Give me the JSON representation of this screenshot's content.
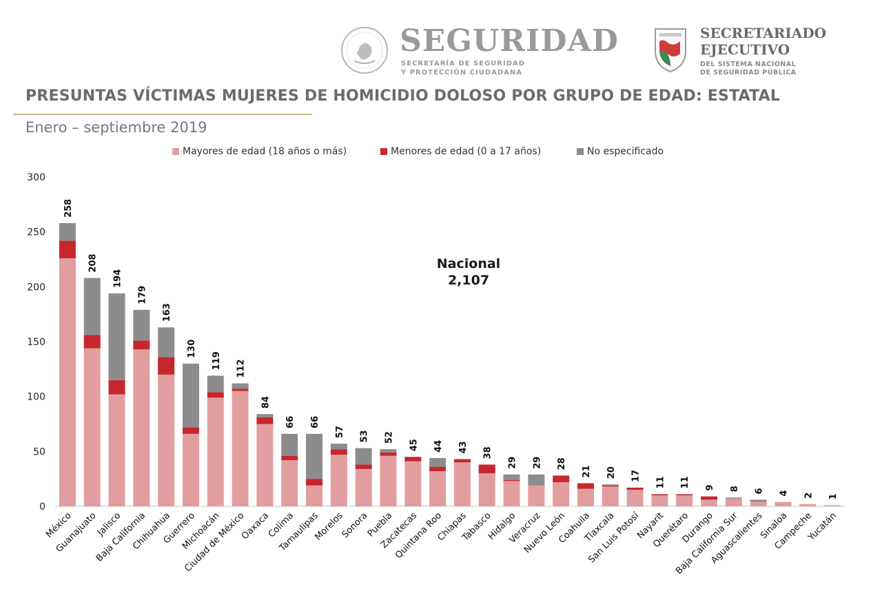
{
  "header": {
    "seguridad_word": "SEGURIDAD",
    "seguridad_sub_line1": "SECRETARÍA DE SEGURIDAD",
    "seguridad_sub_line2": "Y PROTECCIÓN CIUDADANA",
    "se_word_line1": "SECRETARIADO",
    "se_word_line2": "EJECUTIVO",
    "se_sub_line1": "DEL SISTEMA NACIONAL",
    "se_sub_line2": "DE SEGURIDAD PÚBLICA"
  },
  "nacional": {
    "label": "Nacional",
    "value": "2,107"
  },
  "colors": {
    "mayores": "#e29e9e",
    "menores": "#c8262d",
    "no_especificado": "#8c8c8c",
    "title": "#6b6b6b",
    "rule": "#c9b489"
  },
  "chart_data": {
    "type": "bar",
    "stacked": true,
    "title": "PRESUNTAS VÍCTIMAS MUJERES DE HOMICIDIO DOLOSO POR GRUPO DE EDAD: ESTATAL",
    "subtitle": "Enero – septiembre 2019",
    "xlabel": "",
    "ylabel": "",
    "ylim": [
      0,
      300
    ],
    "yticks": [
      0,
      50,
      100,
      150,
      200,
      250,
      300
    ],
    "grid": false,
    "legend_position": "top",
    "categories": [
      "México",
      "Guanajuato",
      "Jalisco",
      "Baja California",
      "Chihuahua",
      "Guerrero",
      "Michoacán",
      "Ciudad de México",
      "Oaxaca",
      "Colima",
      "Tamaulipas",
      "Morelos",
      "Sonora",
      "Puebla",
      "Zacatecas",
      "Quintana Roo",
      "Chiapas",
      "Tabasco",
      "Hidalgo",
      "Veracruz",
      "Nuevo León",
      "Coahuila",
      "Tlaxcala",
      "San Luis Potosí",
      "Nayarit",
      "Querétaro",
      "Durango",
      "Baja California Sur",
      "Aguascalientes",
      "Sinaloa",
      "Campeche",
      "Yucatán"
    ],
    "series": [
      {
        "name": "Mayores de edad (18 años o más)",
        "values": [
          226,
          144,
          102,
          143,
          120,
          66,
          99,
          105,
          75,
          42,
          19,
          47,
          34,
          46,
          41,
          32,
          40,
          30,
          23,
          19,
          22,
          16,
          18,
          15,
          10,
          10,
          6,
          7,
          4,
          4,
          2,
          1
        ]
      },
      {
        "name": "Menores de edad (0 a 17 años)",
        "values": [
          16,
          12,
          13,
          8,
          16,
          6,
          5,
          2,
          6,
          4,
          6,
          5,
          4,
          3,
          4,
          4,
          3,
          8,
          1,
          0,
          6,
          5,
          1,
          2,
          1,
          1,
          3,
          0,
          0,
          0,
          0,
          0
        ]
      },
      {
        "name": "No especificado",
        "values": [
          16,
          52,
          79,
          28,
          27,
          58,
          15,
          5,
          3,
          20,
          41,
          5,
          15,
          3,
          0,
          8,
          0,
          0,
          5,
          10,
          0,
          0,
          1,
          0,
          0,
          0,
          0,
          1,
          2,
          0,
          0,
          0
        ]
      }
    ],
    "totals": [
      258,
      208,
      194,
      179,
      163,
      130,
      119,
      112,
      84,
      66,
      66,
      57,
      53,
      52,
      45,
      44,
      43,
      38,
      29,
      29,
      28,
      21,
      20,
      17,
      11,
      11,
      9,
      8,
      6,
      4,
      2,
      1
    ]
  }
}
